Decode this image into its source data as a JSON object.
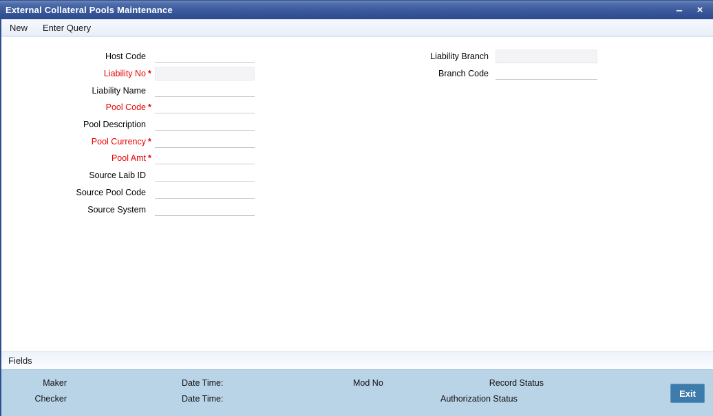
{
  "window": {
    "title": "External Collateral Pools Maintenance",
    "controls": {
      "minimize": "–",
      "close": "×"
    }
  },
  "toolbar": {
    "new_label": "New",
    "enter_query_label": "Enter Query"
  },
  "form": {
    "required_marker": "*",
    "left_fields": [
      {
        "label": "Host Code",
        "value": "",
        "required": false,
        "readonly": false
      },
      {
        "label": "Liability No",
        "value": "",
        "required": true,
        "readonly": true
      },
      {
        "label": "Liability Name",
        "value": "",
        "required": false,
        "readonly": false
      },
      {
        "label": "Pool Code",
        "value": "",
        "required": true,
        "readonly": false
      },
      {
        "label": "Pool Description",
        "value": "",
        "required": false,
        "readonly": false
      },
      {
        "label": "Pool Currency",
        "value": "",
        "required": true,
        "readonly": false
      },
      {
        "label": "Pool Amt",
        "value": "",
        "required": true,
        "readonly": false
      },
      {
        "label": "Source Laib ID",
        "value": "",
        "required": false,
        "readonly": false
      },
      {
        "label": "Source Pool Code",
        "value": "",
        "required": false,
        "readonly": false
      },
      {
        "label": "Source System",
        "value": "",
        "required": false,
        "readonly": false
      }
    ],
    "right_fields": [
      {
        "label": "Liability Branch",
        "value": "",
        "required": false,
        "readonly": true
      },
      {
        "label": "Branch Code",
        "value": "",
        "required": false,
        "readonly": false
      }
    ]
  },
  "fields_link": {
    "label": "Fields"
  },
  "footer": {
    "maker_label": "Maker",
    "checker_label": "Checker",
    "maker_date_label": "Date Time:",
    "checker_date_label": "Date Time:",
    "mod_no_label": "Mod No",
    "record_status_label": "Record Status",
    "auth_status_label": "Authorization Status",
    "exit_label": "Exit"
  },
  "colors": {
    "titlebar_top": "#4e6ca9",
    "titlebar_bottom": "#2c4b8d",
    "window_border": "#2d4d8e",
    "required_red": "#e60000",
    "toolbar_bg": "#edf2fa",
    "footer_bg": "#b9d3e7",
    "exit_button_bg": "#3d7bab",
    "readonly_field_bg": "#f4f4f6"
  }
}
